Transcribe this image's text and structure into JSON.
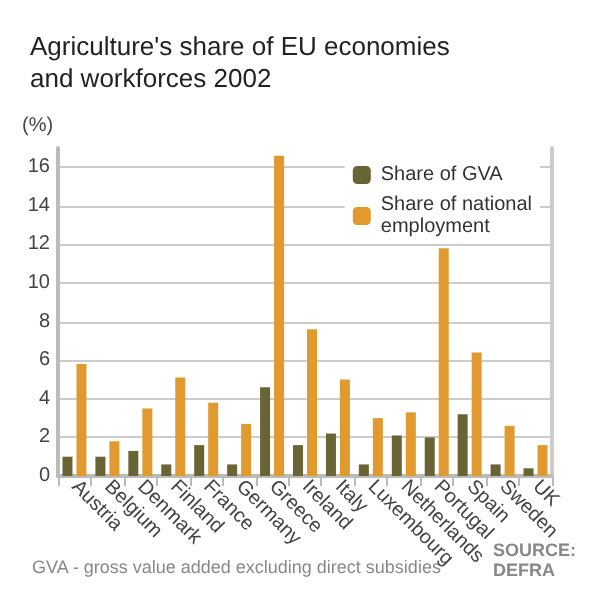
{
  "chart_data": {
    "type": "bar",
    "title": "Agriculture's share of EU economies and workforces 2002",
    "ylabel": "(%)",
    "categories": [
      "Austria",
      "Belgium",
      "Denmark",
      "Finland",
      "France",
      "Germany",
      "Greece",
      "Ireland",
      "Italy",
      "Luxembourg",
      "Netherlands",
      "Portugal",
      "Spain",
      "Sweden",
      "UK"
    ],
    "series": [
      {
        "name": "Share of GVA",
        "color": "#686434",
        "values": [
          1.0,
          1.0,
          1.3,
          0.6,
          1.6,
          0.6,
          4.6,
          1.6,
          2.2,
          0.6,
          2.1,
          2.0,
          3.2,
          0.6,
          0.4
        ]
      },
      {
        "name": "Share of national employment",
        "color": "#e09a30",
        "values": [
          5.8,
          1.8,
          3.5,
          5.1,
          3.8,
          2.7,
          16.6,
          7.6,
          5.0,
          3.0,
          3.3,
          11.8,
          6.4,
          2.6,
          1.6
        ]
      }
    ],
    "ylim": [
      0,
      17
    ],
    "yticks": [
      0,
      2,
      4,
      6,
      8,
      10,
      12,
      14,
      16
    ],
    "grid": "y",
    "legend": "top right",
    "annotations": [
      "GVA - gross value added excluding direct subsidies",
      "SOURCE: DEFRA"
    ]
  }
}
